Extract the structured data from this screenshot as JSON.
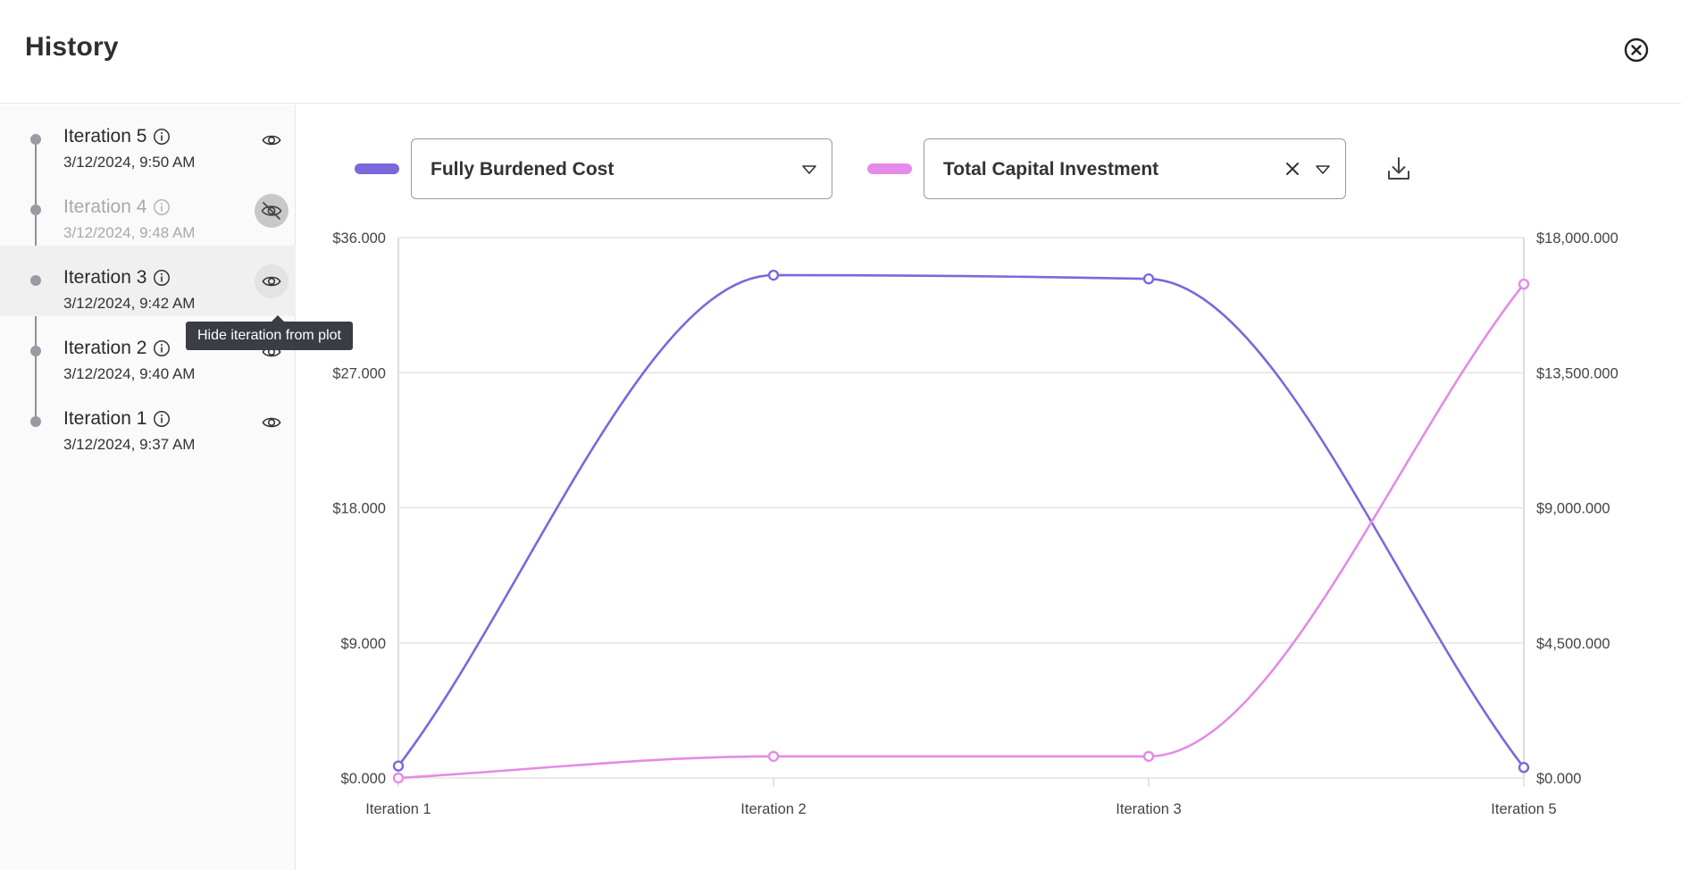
{
  "header": {
    "title": "History"
  },
  "sidebar": {
    "iterations": [
      {
        "name": "Iteration 5",
        "timestamp": "3/12/2024, 9:50 AM",
        "visible": true
      },
      {
        "name": "Iteration 4",
        "timestamp": "3/12/2024, 9:48 AM",
        "visible": false
      },
      {
        "name": "Iteration 3",
        "timestamp": "3/12/2024, 9:42 AM",
        "visible": true
      },
      {
        "name": "Iteration 2",
        "timestamp": "3/12/2024, 9:40 AM",
        "visible": true
      },
      {
        "name": "Iteration 1",
        "timestamp": "3/12/2024, 9:37 AM",
        "visible": true
      }
    ],
    "tooltip": "Hide iteration from plot"
  },
  "controls": {
    "primary_metric": "Fully Burdened Cost",
    "secondary_metric": "Total Capital Investment"
  },
  "colors": {
    "primary": "#7b68dc",
    "secondary": "#e58ae8",
    "grid": "#e4e4e4"
  },
  "icons": [
    "close-circle-icon",
    "info-icon",
    "eye-icon",
    "eye-off-icon",
    "caret-down-icon",
    "clear-x-icon",
    "download-icon"
  ],
  "chart_data": {
    "type": "line",
    "categories": [
      "Iteration 1",
      "Iteration 2",
      "Iteration 3",
      "Iteration 5"
    ],
    "series": [
      {
        "name": "Fully Burdened Cost",
        "axis": "left",
        "values": [
          800,
          33500,
          33250,
          700
        ]
      },
      {
        "name": "Total Capital Investment",
        "axis": "right",
        "values": [
          0,
          720,
          720,
          16450
        ]
      }
    ],
    "y_left": {
      "min": 0,
      "max": 36000,
      "ticks": [
        "$0.000",
        "$9.000",
        "$18.000",
        "$27.000",
        "$36.000"
      ]
    },
    "y_right": {
      "min": 0,
      "max": 18000,
      "ticks": [
        "$0.000",
        "$4,500.000",
        "$9,000.000",
        "$13,500.000",
        "$18,000.000"
      ]
    },
    "grid": true
  }
}
